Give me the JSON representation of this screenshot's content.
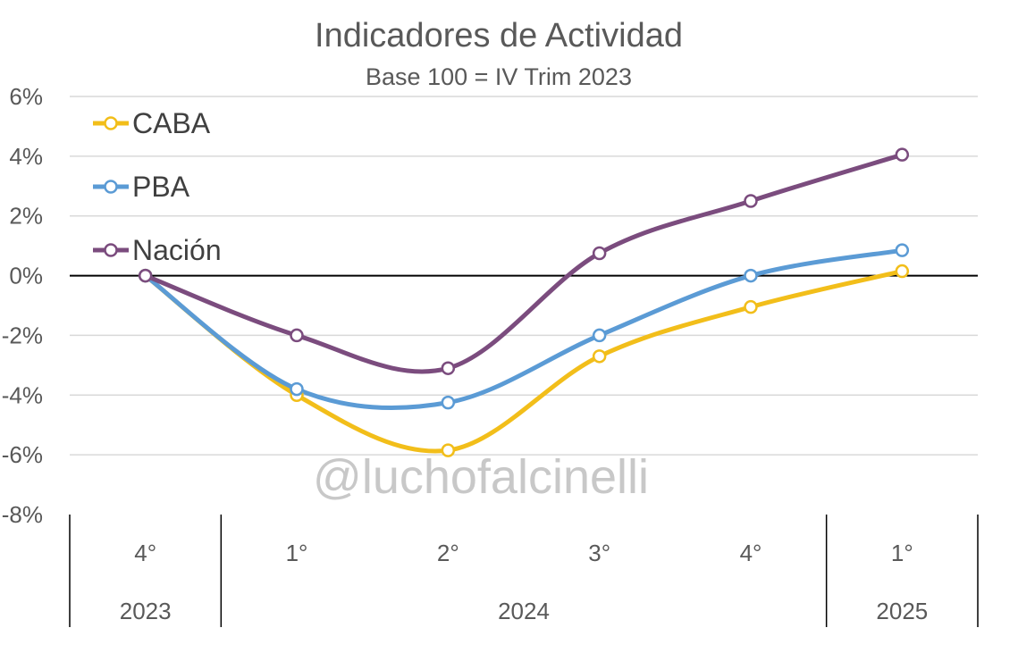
{
  "chart_data": {
    "type": "line",
    "title": "Indicadores de Actividad",
    "subtitle": "Base 100 = IV Trim 2023",
    "watermark": "@luchofalcinelli",
    "categories": [
      "4°",
      "1°",
      "2°",
      "3°",
      "4°",
      "1°"
    ],
    "year_groups": [
      {
        "label": "2023",
        "span": 1
      },
      {
        "label": "2024",
        "span": 4
      },
      {
        "label": "2025",
        "span": 1
      }
    ],
    "ylim": [
      -8,
      6
    ],
    "yticks": [
      6,
      4,
      2,
      0,
      -2,
      -4,
      -6,
      -8
    ],
    "ytick_labels": [
      "6%",
      "4%",
      "2%",
      "0%",
      "-2%",
      "-4%",
      "-6%",
      "-8%"
    ],
    "grid": true,
    "legend_position": "top-left",
    "series": [
      {
        "name": "CABA",
        "color": "#F2BE1A",
        "values": [
          0,
          -4.0,
          -5.85,
          -2.7,
          -1.05,
          0.15
        ]
      },
      {
        "name": "PBA",
        "color": "#5B9BD5",
        "values": [
          0,
          -3.8,
          -4.25,
          -2.0,
          0.0,
          0.85
        ]
      },
      {
        "name": "Nación",
        "color": "#7B4C7E",
        "values": [
          0,
          -2.0,
          -3.1,
          0.75,
          2.5,
          4.05
        ]
      }
    ]
  }
}
